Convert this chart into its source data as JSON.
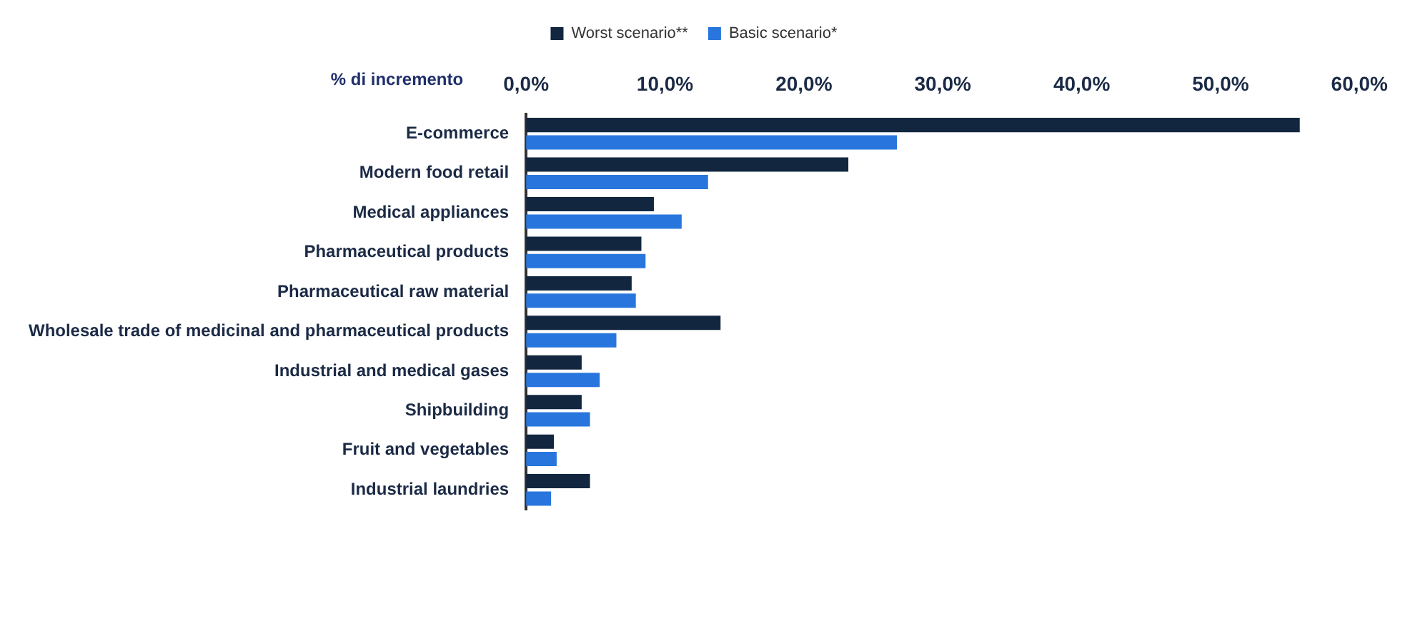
{
  "chart_data": {
    "type": "bar",
    "orientation": "horizontal",
    "xlabel": "% di incremento",
    "categories": [
      "E-commerce",
      "Modern food retail",
      "Medical appliances",
      "Pharmaceutical products",
      "Pharmaceutical raw material",
      "Wholesale trade of medicinal and pharmaceutical products",
      "Industrial and medical gases",
      "Shipbuilding",
      "Fruit and vegetables",
      "Industrial laundries"
    ],
    "series": [
      {
        "name": "Worst scenario**",
        "color": "#12263f",
        "values": [
          55.7,
          23.2,
          9.2,
          8.3,
          7.6,
          14.0,
          4.0,
          4.0,
          2.0,
          4.6
        ]
      },
      {
        "name": "Basic scenario*",
        "color": "#2876dd",
        "values": [
          26.7,
          13.1,
          11.2,
          8.6,
          7.9,
          6.5,
          5.3,
          4.6,
          2.2,
          1.8
        ]
      }
    ],
    "xlim": [
      0,
      60
    ],
    "xticks": [
      {
        "value": 0,
        "label": "0,0%"
      },
      {
        "value": 10,
        "label": "10,0%"
      },
      {
        "value": 20,
        "label": "20,0%"
      },
      {
        "value": 30,
        "label": "30,0%"
      },
      {
        "value": 40,
        "label": "40,0%"
      },
      {
        "value": 50,
        "label": "50,0%"
      },
      {
        "value": 60,
        "label": "60,0%"
      }
    ],
    "grid": false,
    "legend": "top"
  }
}
